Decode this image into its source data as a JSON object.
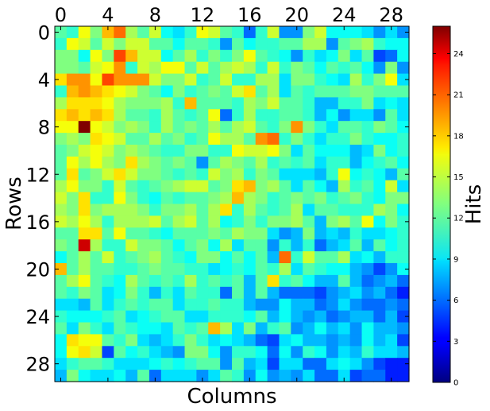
{
  "chart_data": {
    "type": "heatmap",
    "title": "",
    "xlabel": "Columns",
    "ylabel": "Rows",
    "x_ticks": [
      0,
      4,
      8,
      12,
      16,
      20,
      24,
      28
    ],
    "y_ticks": [
      0,
      4,
      8,
      12,
      16,
      20,
      24,
      28
    ],
    "x_range": [
      0,
      29
    ],
    "y_range": [
      0,
      29
    ],
    "grid": false,
    "colormap": "jet",
    "colorbar": {
      "label": "Hits",
      "min": 0,
      "max": 26,
      "ticks": [
        0,
        3,
        6,
        9,
        12,
        15,
        18,
        21,
        24
      ]
    },
    "values": [
      [
        12,
        11,
        16,
        13,
        18,
        20,
        14,
        12,
        15,
        10,
        9,
        11,
        16,
        15,
        12,
        11,
        6,
        11,
        15,
        7,
        7,
        13,
        15,
        10,
        10,
        10,
        9,
        7,
        9,
        7
      ],
      [
        11,
        16,
        15,
        12,
        15,
        13,
        15,
        15,
        12,
        12,
        10,
        12,
        12,
        11,
        7,
        12,
        10,
        11,
        11,
        12,
        12,
        14,
        14,
        7,
        12,
        13,
        14,
        11,
        10,
        10
      ],
      [
        13,
        13,
        10,
        16,
        13,
        21,
        18,
        15,
        15,
        10,
        12,
        14,
        11,
        13,
        11,
        13,
        16,
        12,
        11,
        10,
        7,
        11,
        9,
        10,
        13,
        9,
        12,
        5,
        6,
        10
      ],
      [
        13,
        13,
        12,
        15,
        16,
        19,
        11,
        15,
        14,
        16,
        16,
        12,
        15,
        12,
        14,
        15,
        14,
        11,
        15,
        11,
        13,
        12,
        10,
        12,
        11,
        12,
        10,
        7,
        13,
        7
      ],
      [
        17,
        19,
        19,
        16,
        21,
        19,
        19,
        19,
        15,
        13,
        13,
        15,
        11,
        12,
        15,
        11,
        11,
        14,
        14,
        9,
        13,
        13,
        11,
        10,
        9,
        14,
        11,
        13,
        16,
        9
      ],
      [
        11,
        18,
        19,
        18,
        17,
        16,
        15,
        13,
        12,
        10,
        13,
        11,
        12,
        13,
        12,
        15,
        17,
        12,
        14,
        9,
        12,
        11,
        12,
        12,
        12,
        13,
        13,
        12,
        12,
        12
      ],
      [
        14,
        17,
        17,
        17,
        16,
        14,
        13,
        13,
        13,
        14,
        11,
        18,
        12,
        12,
        12,
        11,
        14,
        13,
        15,
        12,
        12,
        11,
        8,
        8,
        11,
        11,
        13,
        9,
        10,
        9
      ],
      [
        17,
        18,
        17,
        18,
        17,
        14,
        12,
        12,
        11,
        14,
        12,
        11,
        12,
        16,
        6,
        11,
        14,
        11,
        11,
        12,
        12,
        11,
        8,
        10,
        7,
        9,
        9,
        7,
        12,
        9
      ],
      [
        16,
        16,
        26,
        16,
        15,
        13,
        14,
        13,
        11,
        14,
        12,
        13,
        12,
        14,
        12,
        14,
        15,
        12,
        11,
        13,
        19,
        13,
        11,
        9,
        12,
        12,
        11,
        13,
        12,
        10
      ],
      [
        13,
        14,
        13,
        17,
        16,
        15,
        12,
        12,
        14,
        12,
        13,
        11,
        12,
        16,
        14,
        14,
        12,
        19,
        20,
        11,
        13,
        11,
        9,
        11,
        11,
        13,
        11,
        10,
        10,
        11
      ],
      [
        12,
        13,
        15,
        16,
        15,
        13,
        14,
        13,
        12,
        11,
        11,
        13,
        13,
        11,
        11,
        16,
        15,
        15,
        16,
        13,
        9,
        12,
        10,
        10,
        10,
        8,
        9,
        13,
        10,
        11
      ],
      [
        12,
        16,
        14,
        16,
        14,
        13,
        17,
        14,
        13,
        12,
        13,
        12,
        7,
        12,
        14,
        13,
        12,
        14,
        11,
        12,
        11,
        12,
        9,
        11,
        11,
        8,
        10,
        11,
        12,
        10
      ],
      [
        12,
        17,
        12,
        13,
        15,
        17,
        15,
        13,
        13,
        12,
        11,
        12,
        11,
        15,
        13,
        14,
        11,
        13,
        12,
        9,
        9,
        9,
        8,
        11,
        16,
        10,
        11,
        10,
        8,
        12
      ],
      [
        14,
        16,
        13,
        13,
        11,
        15,
        12,
        11,
        12,
        13,
        14,
        15,
        15,
        12,
        13,
        17,
        18,
        13,
        14,
        12,
        9,
        12,
        10,
        8,
        14,
        11,
        12,
        10,
        15,
        9
      ],
      [
        15,
        13,
        17,
        11,
        11,
        16,
        13,
        11,
        10,
        12,
        11,
        12,
        12,
        13,
        14,
        18,
        14,
        13,
        11,
        12,
        13,
        12,
        13,
        11,
        12,
        13,
        11,
        10,
        13,
        13
      ],
      [
        14,
        13,
        17,
        13,
        14,
        14,
        14,
        13,
        11,
        13,
        13,
        14,
        12,
        14,
        17,
        11,
        14,
        12,
        11,
        12,
        14,
        9,
        12,
        12,
        11,
        11,
        11,
        14,
        13,
        10
      ],
      [
        15,
        14,
        16,
        14,
        11,
        14,
        14,
        14,
        15,
        12,
        14,
        15,
        12,
        14,
        10,
        11,
        13,
        11,
        13,
        13,
        14,
        12,
        8,
        13,
        14,
        12,
        16,
        10,
        13,
        11
      ],
      [
        12,
        12,
        17,
        17,
        12,
        16,
        12,
        12,
        11,
        10,
        12,
        12,
        12,
        13,
        12,
        14,
        13,
        13,
        9,
        7,
        8,
        13,
        8,
        9,
        8,
        11,
        9,
        9,
        10,
        11
      ],
      [
        13,
        12,
        24,
        14,
        11,
        11,
        15,
        13,
        13,
        12,
        10,
        12,
        13,
        10,
        14,
        9,
        12,
        12,
        7,
        11,
        8,
        11,
        6,
        8,
        9,
        12,
        8,
        12,
        10,
        11
      ],
      [
        10,
        12,
        14,
        12,
        15,
        11,
        12,
        13,
        14,
        12,
        11,
        10,
        13,
        13,
        10,
        12,
        10,
        12,
        8,
        20,
        11,
        15,
        12,
        12,
        14,
        9,
        10,
        8,
        11,
        11
      ],
      [
        18,
        12,
        14,
        12,
        12,
        11,
        11,
        12,
        13,
        12,
        12,
        11,
        11,
        9,
        10,
        11,
        10,
        12,
        11,
        14,
        9,
        12,
        11,
        10,
        10,
        8,
        7,
        5,
        7,
        10
      ],
      [
        12,
        14,
        16,
        12,
        11,
        10,
        14,
        12,
        11,
        12,
        11,
        14,
        11,
        12,
        11,
        12,
        8,
        12,
        17,
        11,
        12,
        10,
        8,
        8,
        12,
        8,
        6,
        7,
        8,
        6
      ],
      [
        12,
        11,
        13,
        12,
        9,
        10,
        13,
        11,
        8,
        11,
        9,
        12,
        11,
        11,
        6,
        12,
        8,
        12,
        8,
        6,
        6,
        6,
        5,
        7,
        8,
        9,
        7,
        8,
        6,
        4
      ],
      [
        9,
        9,
        8,
        12,
        9,
        11,
        12,
        11,
        12,
        12,
        9,
        11,
        11,
        12,
        11,
        11,
        8,
        7,
        7,
        10,
        8,
        8,
        6,
        7,
        9,
        7,
        6,
        6,
        7,
        6
      ],
      [
        11,
        10,
        10,
        10,
        11,
        12,
        9,
        10,
        11,
        12,
        12,
        9,
        9,
        11,
        11,
        11,
        10,
        12,
        8,
        10,
        8,
        7,
        8,
        6,
        7,
        8,
        8,
        6,
        8,
        5
      ],
      [
        12,
        9,
        13,
        11,
        9,
        12,
        11,
        10,
        10,
        9,
        12,
        11,
        12,
        18,
        14,
        9,
        13,
        8,
        11,
        12,
        7,
        8,
        10,
        8,
        9,
        7,
        10,
        8,
        8,
        7
      ],
      [
        10,
        17,
        16,
        16,
        12,
        11,
        13,
        9,
        8,
        9,
        11,
        13,
        11,
        9,
        10,
        9,
        8,
        6,
        5,
        9,
        10,
        8,
        8,
        7,
        8,
        7,
        10,
        8,
        9,
        5
      ],
      [
        10,
        16,
        17,
        15,
        5,
        12,
        10,
        11,
        9,
        8,
        7,
        13,
        13,
        10,
        7,
        11,
        11,
        10,
        6,
        10,
        7,
        11,
        10,
        7,
        9,
        8,
        11,
        9,
        9,
        8
      ],
      [
        9,
        11,
        12,
        12,
        11,
        9,
        9,
        9,
        10,
        11,
        10,
        11,
        12,
        12,
        7,
        12,
        8,
        9,
        5,
        9,
        9,
        6,
        6,
        9,
        10,
        9,
        7,
        5,
        4,
        4
      ],
      [
        8,
        13,
        10,
        9,
        9,
        10,
        8,
        12,
        6,
        9,
        9,
        9,
        7,
        9,
        12,
        11,
        7,
        10,
        7,
        8,
        7,
        9,
        6,
        6,
        9,
        5,
        6,
        6,
        4,
        4
      ]
    ]
  }
}
